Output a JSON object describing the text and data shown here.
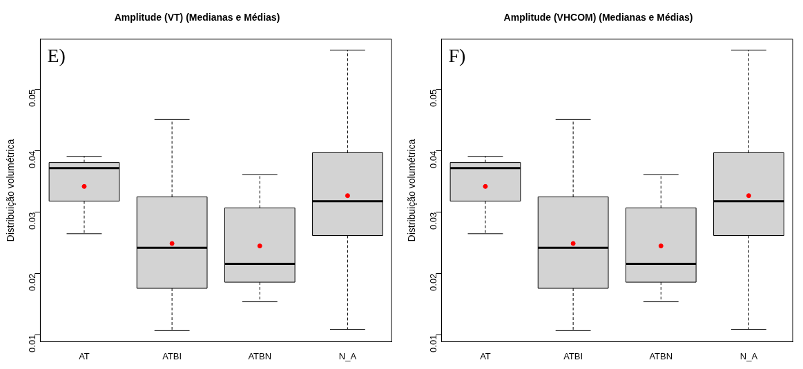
{
  "chart_data": [
    {
      "type": "box",
      "title": "Amplitude (VT) (Medianas e Médias)",
      "ylabel": "Distribuição volumétrica",
      "annotations": [
        "E)"
      ],
      "categories": [
        "AT",
        "ATBI",
        "ATBN",
        "N_A"
      ],
      "ylim": [
        0.0089,
        0.0582
      ],
      "yticks": [
        0.01,
        0.02,
        0.03,
        0.04,
        0.05
      ],
      "grid": false,
      "legend": false,
      "series": [
        {
          "color": "#d3d3d3",
          "boxes": [
            {
              "low": 0.0265,
              "q1": 0.0318,
              "median": 0.0372,
              "q3": 0.0381,
              "high": 0.0391,
              "mean": 0.0342
            },
            {
              "low": 0.0107,
              "q1": 0.0176,
              "median": 0.0242,
              "q3": 0.0325,
              "high": 0.0451,
              "mean": 0.0249
            },
            {
              "low": 0.0154,
              "q1": 0.0186,
              "median": 0.0216,
              "q3": 0.0307,
              "high": 0.0361,
              "mean": 0.0245
            },
            {
              "low": 0.0109,
              "q1": 0.0262,
              "median": 0.0318,
              "q3": 0.0397,
              "high": 0.0564,
              "mean": 0.0327
            }
          ]
        }
      ]
    },
    {
      "type": "box",
      "title": "Amplitude (VHCOM) (Medianas e Médias)",
      "ylabel": "Distribuição volumétrica",
      "annotations": [
        "F)"
      ],
      "categories": [
        "AT",
        "ATBI",
        "ATBN",
        "N_A"
      ],
      "ylim": [
        0.0089,
        0.0582
      ],
      "yticks": [
        0.01,
        0.02,
        0.03,
        0.04,
        0.05
      ],
      "grid": false,
      "legend": false,
      "series": [
        {
          "color": "#d3d3d3",
          "boxes": [
            {
              "low": 0.0265,
              "q1": 0.0318,
              "median": 0.0372,
              "q3": 0.0381,
              "high": 0.0391,
              "mean": 0.0342
            },
            {
              "low": 0.0107,
              "q1": 0.0176,
              "median": 0.0242,
              "q3": 0.0325,
              "high": 0.0451,
              "mean": 0.0249
            },
            {
              "low": 0.0154,
              "q1": 0.0186,
              "median": 0.0216,
              "q3": 0.0307,
              "high": 0.0361,
              "mean": 0.0245
            },
            {
              "low": 0.0109,
              "q1": 0.0262,
              "median": 0.0318,
              "q3": 0.0397,
              "high": 0.0564,
              "mean": 0.0327
            }
          ]
        }
      ]
    }
  ]
}
